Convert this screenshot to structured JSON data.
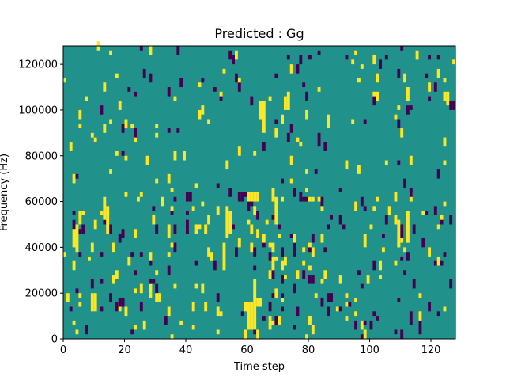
{
  "chart_data": {
    "type": "heatmap",
    "title": "Predicted : Gg",
    "xlabel": "Time step",
    "ylabel": "Frequency (Hz)",
    "xlim": [
      0,
      128
    ],
    "ylim": [
      0,
      128000
    ],
    "xticks": [
      0,
      20,
      40,
      60,
      80,
      100,
      120
    ],
    "yticks": [
      0,
      20000,
      40000,
      60000,
      80000,
      100000,
      120000
    ],
    "xtick_labels": [
      "0",
      "20",
      "40",
      "60",
      "80",
      "100",
      "120"
    ],
    "ytick_labels": [
      "0",
      "20000",
      "40000",
      "60000",
      "80000",
      "100000",
      "120000"
    ],
    "grid": false,
    "background_color": "#21918c",
    "value_colors": {
      "low": "#440154",
      "mid": "#21918c",
      "high": "#fde725"
    },
    "time_steps": 128,
    "frequency_bins": 64,
    "bin_hz": 2000,
    "cells": [
      {
        "t": 9,
        "f0": 12000,
        "f1": 20000,
        "v": 1
      },
      {
        "t": 10,
        "f0": 12000,
        "f1": 20000,
        "v": 1
      },
      {
        "t": 4,
        "f0": 38000,
        "f1": 50000,
        "v": 1
      },
      {
        "t": 3,
        "f0": 40000,
        "f1": 48000,
        "v": 1
      },
      {
        "t": 13,
        "f0": 52000,
        "f1": 62000,
        "v": 1
      },
      {
        "t": 14,
        "f0": 46000,
        "f1": 56000,
        "v": 1
      },
      {
        "t": 18,
        "f0": 14000,
        "f1": 18000,
        "v": -1
      },
      {
        "t": 19,
        "f0": 14000,
        "f1": 18000,
        "v": -1
      },
      {
        "t": 30,
        "f0": 16000,
        "f1": 20000,
        "v": 1
      },
      {
        "t": 31,
        "f0": 16000,
        "f1": 20000,
        "v": 1
      },
      {
        "t": 34,
        "f0": 44000,
        "f1": 46000,
        "v": 1
      },
      {
        "t": 40,
        "f0": 60000,
        "f1": 64000,
        "v": -1
      },
      {
        "t": 41,
        "f0": 60000,
        "f1": 64000,
        "v": -1
      },
      {
        "t": 53,
        "f0": 44000,
        "f1": 58000,
        "v": 1
      },
      {
        "t": 54,
        "f0": 46000,
        "f1": 56000,
        "v": 1
      },
      {
        "t": 52,
        "f0": 30000,
        "f1": 42000,
        "v": 1
      },
      {
        "t": 57,
        "f0": 60000,
        "f1": 64000,
        "v": -1
      },
      {
        "t": 58,
        "f0": 60000,
        "f1": 64000,
        "v": -1
      },
      {
        "t": 60,
        "f0": 60000,
        "f1": 64000,
        "v": 1
      },
      {
        "t": 61,
        "f0": 60000,
        "f1": 64000,
        "v": 1
      },
      {
        "t": 62,
        "f0": 60000,
        "f1": 64000,
        "v": 1
      },
      {
        "t": 60,
        "f0": 4000,
        "f1": 16000,
        "v": 1
      },
      {
        "t": 61,
        "f0": 4000,
        "f1": 16000,
        "v": 1
      },
      {
        "t": 62,
        "f0": 4000,
        "f1": 26000,
        "v": 1
      },
      {
        "t": 63,
        "f0": 14000,
        "f1": 18000,
        "v": 1
      },
      {
        "t": 64,
        "f0": 14000,
        "f1": 18000,
        "v": 1
      },
      {
        "t": 63,
        "f0": 60000,
        "f1": 62000,
        "v": 1
      },
      {
        "t": 68,
        "f0": 60000,
        "f1": 66000,
        "v": 1
      },
      {
        "t": 69,
        "f0": 50000,
        "f1": 62000,
        "v": 1
      },
      {
        "t": 66,
        "f0": 50000,
        "f1": 52000,
        "v": 1
      },
      {
        "t": 67,
        "f0": 40000,
        "f1": 42000,
        "v": 1
      },
      {
        "t": 68,
        "f0": 34000,
        "f1": 36000,
        "v": 1
      },
      {
        "t": 69,
        "f0": 34000,
        "f1": 36000,
        "v": 1
      },
      {
        "t": 75,
        "f0": 62000,
        "f1": 66000,
        "v": -1
      },
      {
        "t": 77,
        "f0": 60000,
        "f1": 62000,
        "v": -1
      },
      {
        "t": 78,
        "f0": 60000,
        "f1": 62000,
        "v": -1
      },
      {
        "t": 79,
        "f0": 60000,
        "f1": 62000,
        "v": -1
      },
      {
        "t": 80,
        "f0": 60000,
        "f1": 62000,
        "v": 1
      },
      {
        "t": 81,
        "f0": 60000,
        "f1": 62000,
        "v": 1
      },
      {
        "t": 86,
        "f0": 16000,
        "f1": 20000,
        "v": -1
      },
      {
        "t": 87,
        "f0": 16000,
        "f1": 20000,
        "v": -1
      },
      {
        "t": 98,
        "f0": 40000,
        "f1": 46000,
        "v": 1
      },
      {
        "t": 108,
        "f0": 50000,
        "f1": 54000,
        "v": 1
      },
      {
        "t": 109,
        "f0": 40000,
        "f1": 52000,
        "v": 1
      },
      {
        "t": 112,
        "f0": 42000,
        "f1": 56000,
        "v": 1
      },
      {
        "t": 124,
        "f0": 104000,
        "f1": 108000,
        "v": 1
      },
      {
        "t": 125,
        "f0": 102000,
        "f1": 108000,
        "v": 1
      },
      {
        "t": 126,
        "f0": 100000,
        "f1": 104000,
        "v": -1
      },
      {
        "t": 127,
        "f0": 100000,
        "f1": 104000,
        "v": -1
      },
      {
        "t": 73,
        "f0": 100000,
        "f1": 108000,
        "v": 1
      },
      {
        "t": 72,
        "f0": 100000,
        "f1": 106000,
        "v": 1
      },
      {
        "t": 65,
        "f0": 90000,
        "f1": 104000,
        "v": 1
      },
      {
        "t": 64,
        "f0": 96000,
        "f1": 104000,
        "v": 1
      }
    ]
  }
}
